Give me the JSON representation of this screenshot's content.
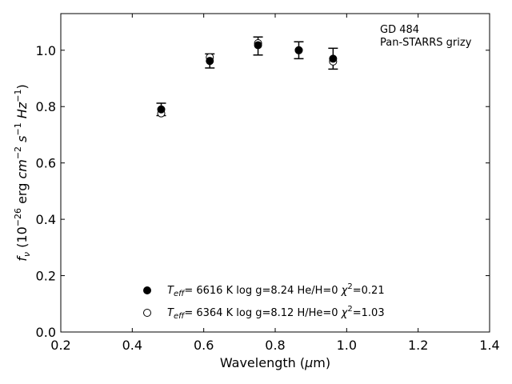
{
  "chart_data": {
    "type": "scatter",
    "xlabel": "Wavelength (μm)",
    "ylabel": "f_ν (10^-26 erg cm^-2 s^-1 Hz^-1)",
    "xlim": [
      0.2,
      1.4
    ],
    "ylim": [
      0.0,
      1.13
    ],
    "x_ticks": [
      0.2,
      0.4,
      0.6,
      0.8,
      1.0,
      1.2,
      1.4
    ],
    "y_ticks": [
      0.0,
      0.2,
      0.4,
      0.6,
      0.8,
      1.0
    ],
    "x_tick_labels": [
      "0.2",
      "0.4",
      "0.6",
      "0.8",
      "1.0",
      "1.2",
      "1.4"
    ],
    "y_tick_labels": [
      "0.0",
      "0.2",
      "0.4",
      "0.6",
      "0.8",
      "1.0"
    ],
    "grid": false,
    "annotation": [
      "GD 484",
      "Pan-STARRS grizy"
    ],
    "observed": {
      "x": [
        0.481,
        0.617,
        0.752,
        0.866,
        0.962
      ],
      "y": [
        0.79,
        0.962,
        1.015,
        1.0,
        0.97
      ],
      "yerr": [
        0.022,
        0.025,
        0.032,
        0.03,
        0.037
      ]
    },
    "series": [
      {
        "marker": "filled-circle",
        "x": [
          0.481,
          0.617,
          0.752,
          0.866,
          0.962
        ],
        "y": [
          0.79,
          0.962,
          1.018,
          1.0,
          0.97
        ],
        "legend": {
          "teff": "6616 K",
          "logg": "log g=8.24",
          "comp": "He/H=0",
          "chi2": "=0.21"
        }
      },
      {
        "marker": "open-circle",
        "x": [
          0.481,
          0.617,
          0.752,
          0.866,
          0.962
        ],
        "y": [
          0.776,
          0.975,
          1.025,
          1.0,
          0.96
        ],
        "legend": {
          "teff": "6364 K",
          "logg": "log g=8.12",
          "comp": "H/He=0",
          "chi2": "=1.03"
        }
      }
    ],
    "legend_position": "bottom-center"
  }
}
